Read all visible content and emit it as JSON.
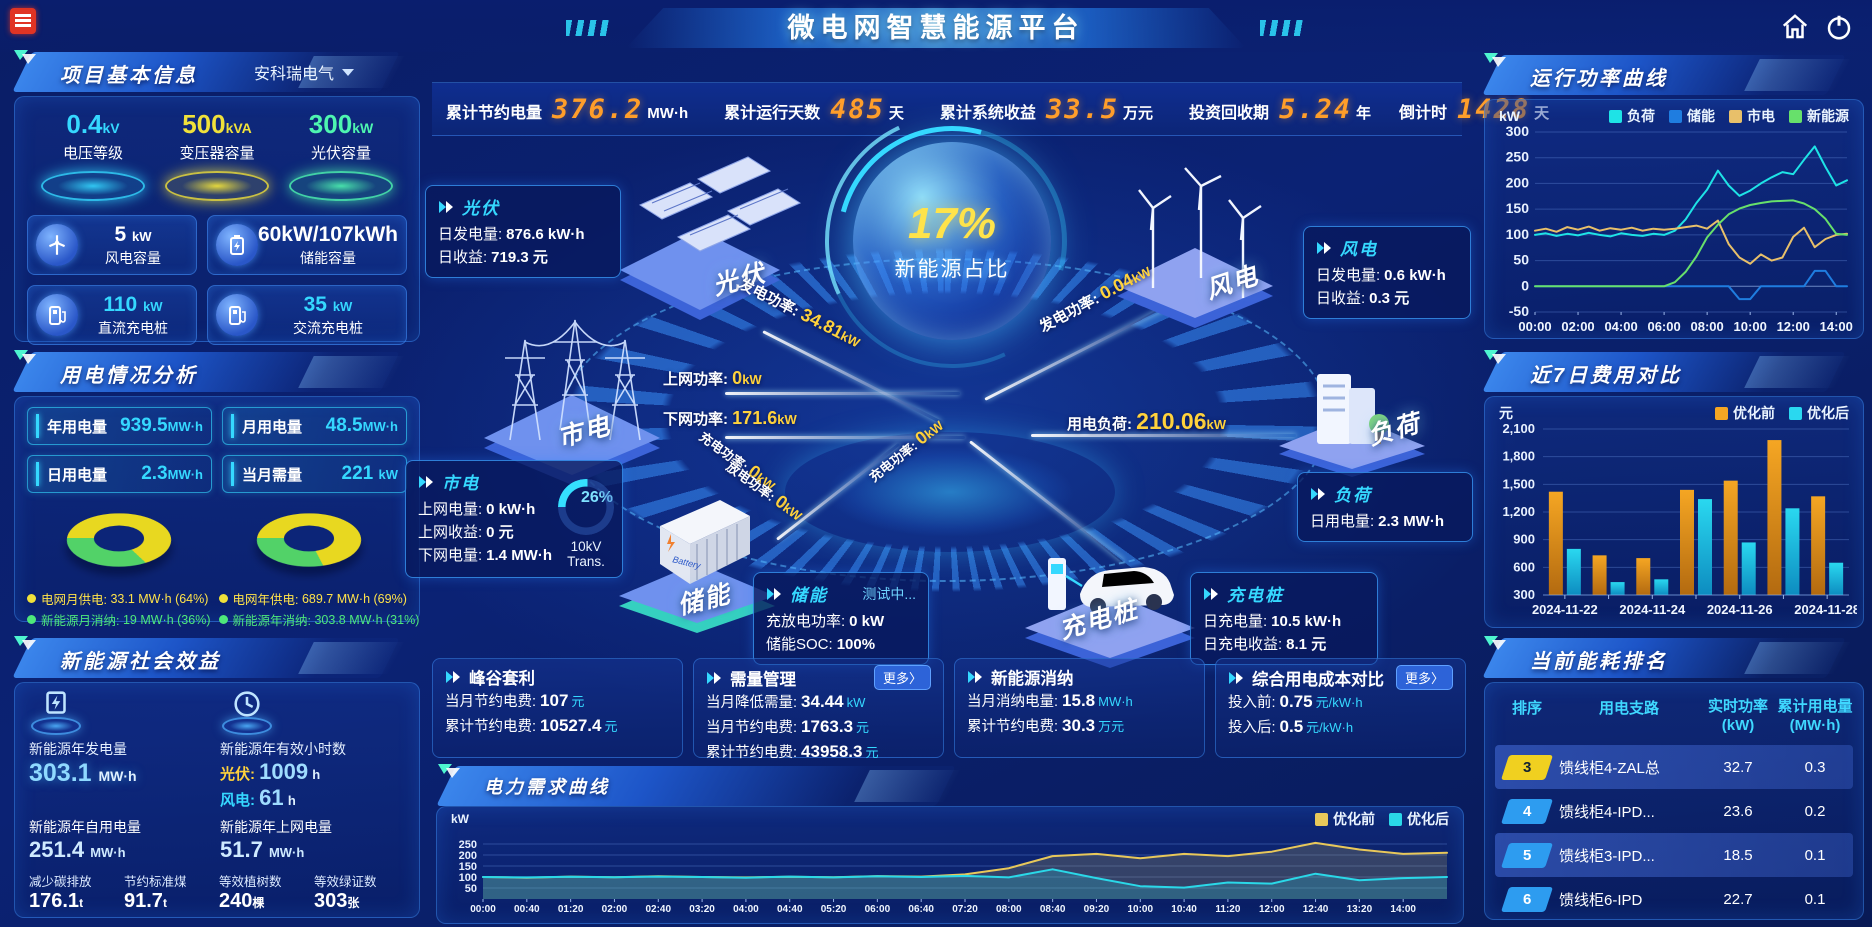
{
  "header": {
    "title": "微电网智慧能源平台"
  },
  "topbar": {
    "items": [
      {
        "label": "累计节约电量",
        "value": "376.2",
        "unit": "MW·h"
      },
      {
        "label": "累计运行天数",
        "value": "485",
        "unit": "天"
      },
      {
        "label": "累计系统收益",
        "value": "33.5",
        "unit": "万元"
      },
      {
        "label": "投资回收期",
        "value": "5.24",
        "unit": "年"
      },
      {
        "label": "倒计时",
        "value": "1428",
        "unit": "天"
      }
    ]
  },
  "project": {
    "title": "项目基本信息",
    "company": "安科瑞电气",
    "caps": [
      {
        "value": "0.4",
        "unit": "kV",
        "label": "电压等级"
      },
      {
        "value": "500",
        "unit": "kVA",
        "label": "变压器容量"
      },
      {
        "value": "300",
        "unit": "kW",
        "label": "光伏容量"
      }
    ],
    "devices": [
      {
        "value": "5",
        "unit": "kW",
        "label": "风电容量"
      },
      {
        "value": "60kW/107kWh",
        "unit": "",
        "label": "储能容量"
      },
      {
        "value": "110",
        "unit": "kW",
        "label": "直流充电桩"
      },
      {
        "value": "35",
        "unit": "kW",
        "label": "交流充电桩"
      }
    ]
  },
  "usage": {
    "title": "用电情况分析",
    "stats": [
      {
        "label": "年用电量",
        "value": "939.5",
        "unit": "MW·h"
      },
      {
        "label": "月用电量",
        "value": "48.5",
        "unit": "MW·h"
      },
      {
        "label": "日用电量",
        "value": "2.3",
        "unit": "MW·h"
      },
      {
        "label": "当月需量",
        "value": "221",
        "unit": "kW"
      }
    ],
    "donuts": {
      "month": {
        "grid_pct": 64,
        "renewable_pct": 36
      },
      "year": {
        "grid_pct": 69,
        "renewable_pct": 31
      }
    },
    "legend": [
      {
        "label": "电网月供电:",
        "value": "33.1 MW·h (64%)",
        "color": "#f0e13a"
      },
      {
        "label": "电网年供电:",
        "value": "689.7 MW·h (69%)",
        "color": "#f0e13a"
      },
      {
        "label": "新能源月消纳:",
        "value": "19 MW·h (36%)",
        "color": "#4ee87a"
      },
      {
        "label": "新能源年消纳:",
        "value": "303.8 MW·h (31%)",
        "color": "#4ee87a"
      }
    ]
  },
  "social": {
    "title": "新能源社会效益",
    "gen": {
      "label": "新能源年发电量",
      "value": "303.1",
      "unit": "MW·h"
    },
    "hours": {
      "label": "新能源年有效小时数",
      "lines": [
        {
          "k": "光伏:",
          "v": "1009",
          "u": "h"
        },
        {
          "k": "风电:",
          "v": "61",
          "u": "h"
        }
      ]
    },
    "mid": [
      {
        "label": "新能源年自用电量",
        "value": "251.4",
        "unit": "MW·h"
      },
      {
        "label": "新能源年上网电量",
        "value": "51.7",
        "unit": "MW·h"
      }
    ],
    "small": [
      {
        "label": "减少碳排放",
        "value": "176.1",
        "unit": "t"
      },
      {
        "label": "节约标准煤",
        "value": "91.7",
        "unit": "t"
      },
      {
        "label": "等效植树数",
        "value": "240",
        "unit": "棵"
      },
      {
        "label": "等效绿证数",
        "value": "303",
        "unit": "张"
      }
    ]
  },
  "diagram": {
    "center": {
      "value": "17%",
      "label": "新能源占比"
    },
    "nodes": {
      "pv": "光伏",
      "grid": "市电",
      "wind": "风电",
      "load": "负荷",
      "storage": "储能",
      "charger": "充电桩"
    },
    "boxes": {
      "pv": {
        "title": "光伏",
        "rows": [
          {
            "label": "日发电量:",
            "value": "876.6 kW·h"
          },
          {
            "label": "日收益:",
            "value": "719.3 元"
          }
        ]
      },
      "grid": {
        "title": "市电",
        "rows": [
          {
            "label": "上网电量:",
            "value": "0 kW·h"
          },
          {
            "label": "上网收益:",
            "value": "0 元"
          },
          {
            "label": "下网电量:",
            "value": "1.4 MW·h"
          }
        ],
        "gauge": {
          "value": "26%",
          "label": "10kV Trans."
        }
      },
      "wind": {
        "title": "风电",
        "rows": [
          {
            "label": "日发电量:",
            "value": "0.6 kW·h"
          },
          {
            "label": "日收益:",
            "value": "0.3 元"
          }
        ]
      },
      "load": {
        "title": "负荷",
        "rows": [
          {
            "label": "日用电量:",
            "value": "2.3 MW·h"
          }
        ]
      },
      "storage": {
        "title": "储能",
        "status": "测试中...",
        "rows": [
          {
            "label": "充放电功率:",
            "value": "0 kW"
          },
          {
            "label": "储能SOC:",
            "value": "100%"
          }
        ]
      },
      "charger": {
        "title": "充电桩",
        "rows": [
          {
            "label": "日充电量:",
            "value": "10.5 kW·h"
          },
          {
            "label": "日充电收益:",
            "value": "8.1 元"
          }
        ]
      }
    },
    "flows": {
      "pv_gen": {
        "label": "发电功率:",
        "value": "34.81",
        "unit": "kW"
      },
      "grid_up": {
        "label": "上网功率:",
        "value": "0",
        "unit": "kW"
      },
      "grid_down": {
        "label": "下网功率:",
        "value": "171.6",
        "unit": "kW"
      },
      "wind_gen": {
        "label": "发电功率:",
        "value": "0.04",
        "unit": "kW"
      },
      "load_use": {
        "label": "用电负荷:",
        "value": "210.06",
        "unit": "kW"
      },
      "st_chg": {
        "label": "充电功率:",
        "value": "0",
        "unit": "kW"
      },
      "st_dis": {
        "label": "放电功率:",
        "value": "0",
        "unit": "kW"
      },
      "ev_chg": {
        "label": "充电功率:",
        "value": "0",
        "unit": "kW"
      }
    }
  },
  "cards": [
    {
      "title": "峰谷套利",
      "more": "",
      "rows": [
        {
          "label": "当月节约电费:",
          "value": "107",
          "unit": "元"
        },
        {
          "label": "累计节约电费:",
          "value": "10527.4",
          "unit": "元"
        }
      ]
    },
    {
      "title": "需量管理",
      "more": "更多〉",
      "rows": [
        {
          "label": "当月降低需量:",
          "value": "34.44",
          "unit": "kW"
        },
        {
          "label": "当月节约电费:",
          "value": "1763.3",
          "unit": "元"
        },
        {
          "label": "累计节约电费:",
          "value": "43958.3",
          "unit": "元"
        }
      ]
    },
    {
      "title": "新能源消纳",
      "more": "",
      "rows": [
        {
          "label": "当月消纳电量:",
          "value": "15.8",
          "unit": "MW·h"
        },
        {
          "label": "累计节约电费:",
          "value": "30.3",
          "unit": "万元"
        }
      ]
    },
    {
      "title": "综合用电成本对比",
      "more": "更多〉",
      "rows": [
        {
          "label": "投入前:",
          "value": "0.75",
          "unit": "元/kW·h"
        },
        {
          "label": "投入后:",
          "value": "0.5",
          "unit": "元/kW·h"
        }
      ]
    }
  ],
  "chart_data": [
    {
      "id": "run",
      "type": "line",
      "title": "运行功率曲线",
      "ylabel": "kW",
      "ylim": [
        -50,
        300
      ],
      "yticks": [
        300,
        250,
        200,
        150,
        100,
        50,
        0,
        -50
      ],
      "xticks": [
        "00:00",
        "02:00",
        "04:00",
        "06:00",
        "08:00",
        "10:00",
        "12:00",
        "14:00"
      ],
      "xtick_step_points": 4,
      "grid": true,
      "legend_position": "top",
      "series": [
        {
          "name": "负荷",
          "color": "#1ee3e6",
          "values": [
            100,
            103,
            98,
            102,
            99,
            104,
            100,
            97,
            103,
            100,
            98,
            102,
            100,
            108,
            130,
            162,
            188,
            225,
            196,
            176,
            186,
            200,
            212,
            222,
            218,
            246,
            272,
            232,
            196,
            206
          ]
        },
        {
          "name": "储能",
          "color": "#1f7de0",
          "values": [
            0,
            0,
            0,
            0,
            0,
            0,
            0,
            0,
            0,
            0,
            0,
            0,
            0,
            0,
            0,
            0,
            0,
            0,
            0,
            -25,
            -25,
            0,
            0,
            0,
            0,
            0,
            30,
            30,
            0,
            0
          ]
        },
        {
          "name": "市电",
          "color": "#e8c06a",
          "values": [
            108,
            112,
            106,
            115,
            110,
            116,
            108,
            113,
            110,
            114,
            108,
            112,
            110,
            112,
            115,
            118,
            112,
            128,
            82,
            56,
            44,
            62,
            50,
            56,
            96,
            114,
            76,
            92,
            100,
            102
          ]
        },
        {
          "name": "新能源",
          "color": "#67e06b",
          "values": [
            0,
            0,
            0,
            0,
            0,
            0,
            0,
            0,
            0,
            0,
            0,
            0,
            0,
            8,
            28,
            58,
            95,
            120,
            140,
            151,
            158,
            162,
            165,
            166,
            167,
            161,
            150,
            131,
            102,
            100
          ]
        }
      ]
    },
    {
      "id": "cost",
      "type": "bar",
      "title": "近7日费用对比",
      "ylabel": "元",
      "ylim": [
        300,
        2100
      ],
      "yticks": [
        2100,
        1800,
        1500,
        1200,
        900,
        600,
        300
      ],
      "categories": [
        "2024-11-22",
        "2024-11-23",
        "2024-11-24",
        "2024-11-25",
        "2024-11-26",
        "2024-11-27",
        "2024-11-28"
      ],
      "xtick_every": 2,
      "grid": true,
      "legend_position": "top-right",
      "series": [
        {
          "name": "优化前",
          "color": "#f5a623",
          "color2": "#b36a10",
          "values": [
            1420,
            730,
            700,
            1440,
            1540,
            1980,
            1370
          ]
        },
        {
          "name": "优化后",
          "color": "#2ad8f0",
          "color2": "#0d8cc0",
          "values": [
            800,
            440,
            470,
            1340,
            870,
            1240,
            650
          ]
        }
      ]
    },
    {
      "id": "demand",
      "type": "line",
      "title": "电力需求曲线",
      "ylabel": "kW",
      "ylim": [
        0,
        300
      ],
      "yticks": [
        250,
        200,
        150,
        100,
        50
      ],
      "xticks": [
        "00:00",
        "00:40",
        "01:20",
        "02:00",
        "02:40",
        "03:20",
        "04:00",
        "04:40",
        "05:20",
        "06:00",
        "06:40",
        "07:20",
        "08:00",
        "08:40",
        "09:20",
        "10:00",
        "10:40",
        "11:20",
        "12:00",
        "12:40",
        "13:20",
        "14:00"
      ],
      "xtick_step_points": 1,
      "grid": true,
      "legend_position": "top-right",
      "series": [
        {
          "name": "优化前",
          "color": "#e8c85a",
          "fill": "rgba(200,180,90,.22)",
          "values": [
            100,
            97,
            102,
            99,
            103,
            100,
            98,
            101,
            99,
            104,
            102,
            112,
            140,
            195,
            205,
            185,
            205,
            195,
            215,
            255,
            225,
            205,
            210
          ]
        },
        {
          "name": "优化后",
          "color": "#2ad8e8",
          "fill": "rgba(42,216,232,.22)",
          "values": [
            100,
            98,
            101,
            99,
            102,
            100,
            97,
            102,
            98,
            103,
            100,
            105,
            98,
            135,
            95,
            58,
            52,
            75,
            70,
            115,
            85,
            95,
            100
          ]
        }
      ]
    }
  ],
  "ranking": {
    "title": "当前能耗排名",
    "columns": [
      {
        "t": "排序",
        "s": ""
      },
      {
        "t": "用电支路",
        "s": ""
      },
      {
        "t": "实时功率",
        "s": "(kW)"
      },
      {
        "t": "累计用电量",
        "s": "(MW·h)"
      }
    ],
    "rows": [
      {
        "rank": "3",
        "badge": "#f0d020",
        "branch": "馈线柜4-ZAL总",
        "power": "32.7",
        "energy": "0.3"
      },
      {
        "rank": "4",
        "badge": "#2d9cf0",
        "branch": "馈线柜4-IPD...",
        "power": "23.6",
        "energy": "0.2"
      },
      {
        "rank": "5",
        "badge": "#2d9cf0",
        "branch": "馈线柜3-IPD...",
        "power": "18.5",
        "energy": "0.1"
      },
      {
        "rank": "6",
        "badge": "#2d9cf0",
        "branch": "馈线柜6-IPD",
        "power": "22.7",
        "energy": "0.1"
      }
    ]
  }
}
